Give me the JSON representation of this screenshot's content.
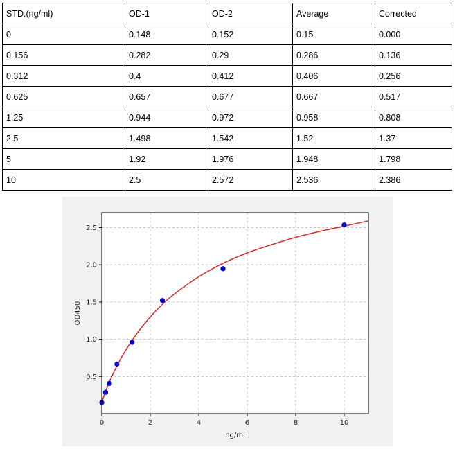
{
  "table": {
    "headers": [
      "STD.(ng/ml)",
      "OD-1",
      "OD-2",
      "Average",
      "Corrected"
    ],
    "rows": [
      [
        "0",
        "0.148",
        "0.152",
        "0.15",
        "0.000"
      ],
      [
        "0.156",
        "0.282",
        "0.29",
        "0.286",
        "0.136"
      ],
      [
        "0.312",
        "0.4",
        "0.412",
        "0.406",
        "0.256"
      ],
      [
        "0.625",
        "0.657",
        "0.677",
        "0.667",
        "0.517"
      ],
      [
        "1.25",
        "0.944",
        "0.972",
        "0.958",
        "0.808"
      ],
      [
        "2.5",
        "1.498",
        "1.542",
        "1.52",
        "1.37"
      ],
      [
        "5",
        "1.92",
        "1.976",
        "1.948",
        "1.798"
      ],
      [
        "10",
        "2.5",
        "2.572",
        "2.536",
        "2.386"
      ]
    ]
  },
  "chart_data": {
    "type": "scatter",
    "title": "",
    "xlabel": "ng/ml",
    "ylabel": "OD450",
    "xlim": [
      0,
      11
    ],
    "ylim": [
      0,
      2.7
    ],
    "xticks": [
      0,
      2,
      4,
      6,
      8,
      10
    ],
    "yticks": [
      0.5,
      1.0,
      1.5,
      2.0,
      2.5
    ],
    "xtick_labels": [
      "0",
      "2",
      "4",
      "6",
      "8",
      "10"
    ],
    "ytick_labels": [
      "0.5",
      "1.0",
      "1.5",
      "2.0",
      "2.5"
    ],
    "grid": true,
    "point_color": "#0000cc",
    "curve_color": "#d62728",
    "points": {
      "x": [
        0,
        0.156,
        0.312,
        0.625,
        1.25,
        2.5,
        5,
        10
      ],
      "y": [
        0.15,
        0.286,
        0.406,
        0.667,
        0.958,
        1.52,
        1.948,
        2.536
      ]
    },
    "fit_curve": {
      "x": [
        0,
        0.1,
        0.25,
        0.5,
        0.75,
        1,
        1.5,
        2,
        2.5,
        3,
        4,
        5,
        6,
        7,
        8,
        9,
        10,
        11
      ],
      "y": [
        0.15,
        0.25,
        0.38,
        0.56,
        0.72,
        0.86,
        1.1,
        1.3,
        1.47,
        1.61,
        1.84,
        2.02,
        2.16,
        2.27,
        2.37,
        2.45,
        2.52,
        2.59
      ]
    }
  }
}
